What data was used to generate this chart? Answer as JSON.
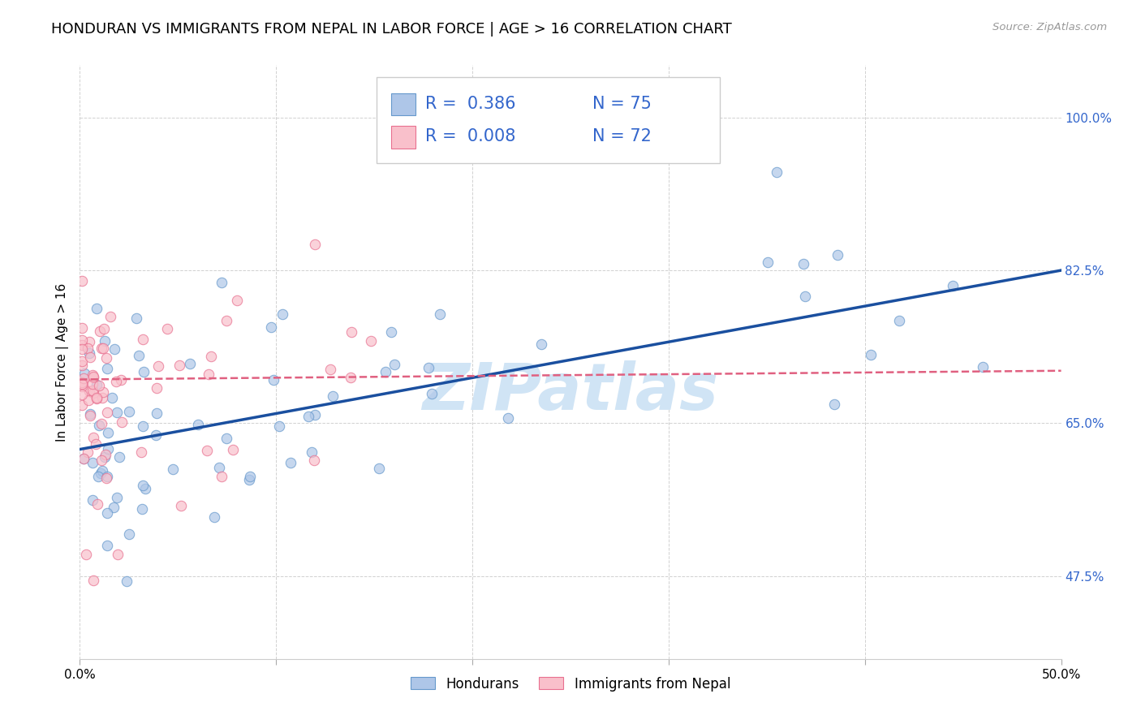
{
  "title": "HONDURAN VS IMMIGRANTS FROM NEPAL IN LABOR FORCE | AGE > 16 CORRELATION CHART",
  "source_text": "Source: ZipAtlas.com",
  "ylabel": "In Labor Force | Age > 16",
  "x_min": 0.0,
  "x_max": 0.5,
  "y_min": 0.38,
  "y_max": 1.06,
  "x_ticks": [
    0.0,
    0.1,
    0.2,
    0.3,
    0.4,
    0.5
  ],
  "x_tick_labels": [
    "0.0%",
    "",
    "",
    "",
    "",
    "50.0%"
  ],
  "y_ticks": [
    0.475,
    0.65,
    0.825,
    1.0
  ],
  "y_tick_labels": [
    "47.5%",
    "65.0%",
    "82.5%",
    "100.0%"
  ],
  "grid_color": "#cccccc",
  "background_color": "#ffffff",
  "R_honduran": 0.386,
  "N_honduran": 75,
  "R_nepal": 0.008,
  "N_nepal": 72,
  "honduran_fill_color": "#aec6e8",
  "honduran_edge_color": "#6699cc",
  "nepal_fill_color": "#f9c0cb",
  "nepal_edge_color": "#e87090",
  "trend_honduran_color": "#1a4f9f",
  "trend_nepal_color": "#e06080",
  "watermark_text": "ZIPatlas",
  "watermark_color": "#d0e4f5",
  "title_fontsize": 13,
  "tick_fontsize": 11,
  "tick_color": "#3366cc",
  "legend_fontsize": 15,
  "axis_label_fontsize": 11,
  "hon_trend_x0": 0.0,
  "hon_trend_y0": 0.62,
  "hon_trend_x1": 0.5,
  "hon_trend_y1": 0.825,
  "nep_trend_x0": 0.0,
  "nep_trend_y0": 0.7,
  "nep_trend_x1": 0.5,
  "nep_trend_y1": 0.71
}
